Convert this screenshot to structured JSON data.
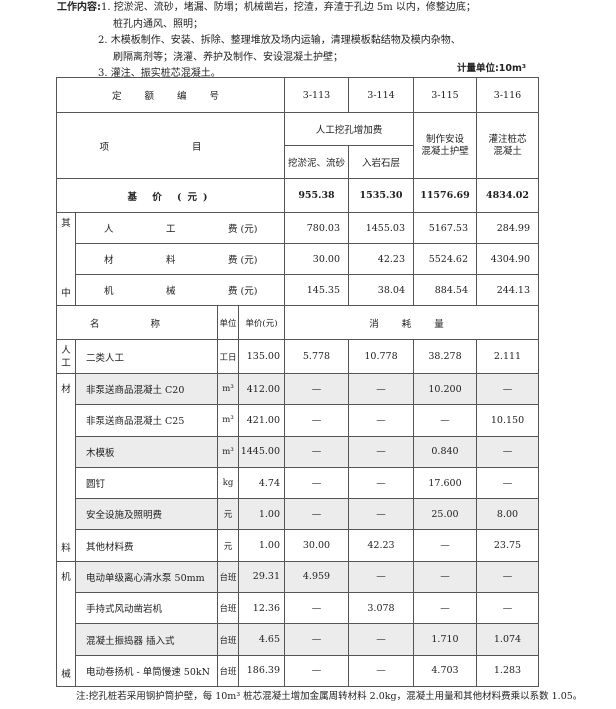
{
  "work_content": {
    "label": "工作内容:",
    "lines": [
      "1. 挖淤泥、流砂，堵漏、防塌；机械凿岩，挖渣，弃渣于孔边 5m 以内，修整边底；",
      "桩孔内通风、照明；",
      "2. 木模板制作、安装、拆除、整理堆放及场内运输，清理模板黏结物及模内杂物、",
      "刷隔离剂等；浇灌、养护及制作、安设混凝土护壁；",
      "3. 灌注、振实桩芯混凝土。"
    ]
  },
  "measure_unit": "计量单位:10m³",
  "table": {
    "quota_no_label": "定 额 编 号",
    "quota_nos": [
      "3-113",
      "3-114",
      "3-115",
      "3-116"
    ],
    "item_label": "项 目",
    "group_header": "人工挖孔增加费",
    "sub_headers": [
      "挖淤泥、流砂",
      "入岩石层"
    ],
    "col3_header": "制作安设\n混凝土护壁",
    "col4_header": "灌注桩芯\n混凝土",
    "base_price_label": "基 价 (元)",
    "base_prices": [
      "955.38",
      "1535.30",
      "11576.69",
      "4834.02"
    ],
    "of_which_label": [
      "其",
      "中"
    ],
    "cost_rows": [
      {
        "label": [
          "人",
          "工",
          "费 (元)"
        ],
        "values": [
          "780.03",
          "1455.03",
          "5167.53",
          "284.99"
        ]
      },
      {
        "label": [
          "材",
          "料",
          "费 (元)"
        ],
        "values": [
          "30.00",
          "42.23",
          "5524.62",
          "4304.90"
        ]
      },
      {
        "label": [
          "机",
          "械",
          "费 (元)"
        ],
        "values": [
          "145.35",
          "38.04",
          "884.54",
          "244.13"
        ]
      }
    ],
    "name_header": "名 称",
    "unit_header": "单位",
    "price_header": "单价(元)",
    "consumption_header": "消 耗 量",
    "groups": [
      {
        "side": [
          "人",
          "工"
        ],
        "rows": [
          {
            "name": "二类人工",
            "unit": "工日",
            "price": "135.00",
            "values": [
              "5.778",
              "10.778",
              "38.278",
              "2.111"
            ],
            "shaded": false
          }
        ]
      },
      {
        "side": [
          "材",
          "料"
        ],
        "rows": [
          {
            "name": "非泵送商品混凝土 C20",
            "unit": "m³",
            "price": "412.00",
            "values": [
              "—",
              "—",
              "10.200",
              "—"
            ],
            "shaded": true
          },
          {
            "name": "非泵送商品混凝土 C25",
            "unit": "m³",
            "price": "421.00",
            "values": [
              "—",
              "—",
              "—",
              "10.150"
            ],
            "shaded": false
          },
          {
            "name": "木模板",
            "unit": "m³",
            "price": "1445.00",
            "values": [
              "—",
              "—",
              "0.840",
              "—"
            ],
            "shaded": true
          },
          {
            "name": "圆钉",
            "unit": "kg",
            "price": "4.74",
            "values": [
              "—",
              "—",
              "17.600",
              "—"
            ],
            "shaded": false
          },
          {
            "name": "安全设施及照明费",
            "unit": "元",
            "price": "1.00",
            "values": [
              "—",
              "—",
              "25.00",
              "8.00"
            ],
            "shaded": true
          },
          {
            "name": "其他材料费",
            "unit": "元",
            "price": "1.00",
            "values": [
              "30.00",
              "42.23",
              "—",
              "23.75"
            ],
            "shaded": false
          }
        ]
      },
      {
        "side": [
          "机",
          "械"
        ],
        "rows": [
          {
            "name": "电动单级离心清水泵 50mm",
            "unit": "台班",
            "price": "29.31",
            "values": [
              "4.959",
              "—",
              "—",
              "—"
            ],
            "shaded": true
          },
          {
            "name": "手持式风动凿岩机",
            "unit": "台班",
            "price": "12.36",
            "values": [
              "—",
              "3.078",
              "—",
              "—"
            ],
            "shaded": false
          },
          {
            "name": "混凝土振捣器 插入式",
            "unit": "台班",
            "price": "4.65",
            "values": [
              "—",
              "—",
              "1.710",
              "1.074"
            ],
            "shaded": true
          },
          {
            "name": "电动卷扬机 - 单筒慢速 50kN",
            "unit": "台班",
            "price": "186.39",
            "values": [
              "—",
              "—",
              "4.703",
              "1.283"
            ],
            "shaded": false
          }
        ]
      }
    ]
  },
  "note": "注:挖孔桩若采用钢护筒护壁，每 10m³ 桩芯混凝土增加金属周转材料 2.0kg，混凝土用量和其他材料费乘以系数 1.05。"
}
